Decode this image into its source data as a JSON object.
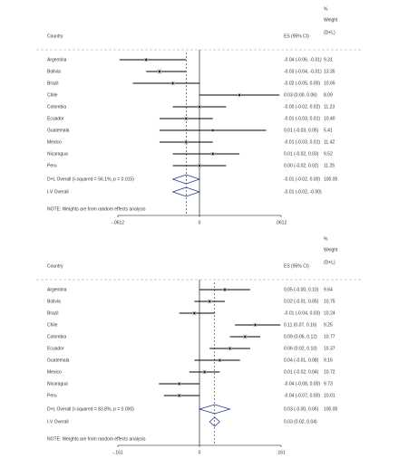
{
  "chart_data": [
    {
      "type": "forest",
      "headers": {
        "pct": "%",
        "weight": "Weight",
        "weight_sub": "(D+L)",
        "country": "Country",
        "es": "ES (95% CI)"
      },
      "studies": [
        {
          "label": "Argentina",
          "es": -0.04,
          "lo": -0.06,
          "hi": -0.01,
          "es_text": "-0.04 (-0.06, -0.01)",
          "weight": "9.31"
        },
        {
          "label": "Bolivia",
          "es": -0.03,
          "lo": -0.04,
          "hi": -0.01,
          "es_text": "-0.03 (-0.04, -0.01)",
          "weight": "13.35"
        },
        {
          "label": "Brazil",
          "es": -0.02,
          "lo": -0.05,
          "hi": 0.0,
          "es_text": "-0.02 (-0.05, 0.00)",
          "weight": "10.65"
        },
        {
          "label": "Chile",
          "es": 0.03,
          "lo": 0.0,
          "hi": 0.06,
          "es_text": "0.03 (0.00, 0.06)",
          "weight": "8.09"
        },
        {
          "label": "Colombia",
          "es": -0.0,
          "lo": -0.02,
          "hi": 0.02,
          "es_text": "-0.00 (-0.02, 0.02)",
          "weight": "11.23"
        },
        {
          "label": "Ecuador",
          "es": -0.01,
          "lo": -0.03,
          "hi": 0.01,
          "es_text": "-0.01 (-0.03, 0.01)",
          "weight": "10.40"
        },
        {
          "label": "Guatemala",
          "es": 0.01,
          "lo": -0.03,
          "hi": 0.05,
          "es_text": "0.01 (-0.03, 0.05)",
          "weight": "5.41"
        },
        {
          "label": "Mexico",
          "es": -0.01,
          "lo": -0.03,
          "hi": 0.01,
          "es_text": "-0.01 (-0.03, 0.01)",
          "weight": "11.42"
        },
        {
          "label": "Nicaragua",
          "es": 0.01,
          "lo": -0.02,
          "hi": 0.03,
          "es_text": "0.01 (-0.02, 0.03)",
          "weight": "9.52"
        },
        {
          "label": "Peru",
          "es": 0.0,
          "lo": -0.02,
          "hi": 0.02,
          "es_text": "0.00 (-0.02, 0.02)",
          "weight": "11.25"
        }
      ],
      "overall": [
        {
          "label": "D+L Overall (I-squared = 56.1%, p = 0.015)",
          "es": -0.01,
          "lo": -0.02,
          "hi": 0.0,
          "es_text": "-0.01 (-0.02, 0.00)",
          "weight": "100.00"
        },
        {
          "label": "I-V Overall",
          "es": -0.01,
          "lo": -0.02,
          "hi": -0.0,
          "es_text": "-0.01 (-0.02, -0.00)"
        }
      ],
      "note": "NOTE: Weights are from random effects analysis",
      "xlim": [
        -0.0612,
        0.0612
      ],
      "xticks": [
        {
          "value": -0.0612,
          "label": "-.0612"
        },
        0,
        {
          "value": 0.0612,
          "label": ".0612"
        }
      ]
    },
    {
      "type": "forest",
      "headers": {
        "pct": "%",
        "weight": "Weight",
        "weight_sub": "(D+L)",
        "country": "Country",
        "es": "ES (95% CI)"
      },
      "studies": [
        {
          "label": "Argentina",
          "es": 0.05,
          "lo": -0.0,
          "hi": 0.1,
          "es_text": "0.05 (-0.00, 0.10)",
          "weight": "9.64"
        },
        {
          "label": "Bolivia",
          "es": 0.02,
          "lo": -0.01,
          "hi": 0.05,
          "es_text": "0.02 (-0.01, 0.05)",
          "weight": "10.75"
        },
        {
          "label": "Brazil",
          "es": -0.01,
          "lo": -0.04,
          "hi": 0.03,
          "es_text": "-0.01 (-0.04, 0.03)",
          "weight": "10.24"
        },
        {
          "label": "Chile",
          "es": 0.11,
          "lo": 0.07,
          "hi": 0.16,
          "es_text": "0.11 (0.07, 0.16)",
          "weight": "9.25"
        },
        {
          "label": "Colombia",
          "es": 0.09,
          "lo": 0.06,
          "hi": 0.12,
          "es_text": "0.09 (0.06, 0.12)",
          "weight": "10.77"
        },
        {
          "label": "Ecuador",
          "es": 0.06,
          "lo": 0.02,
          "hi": 0.1,
          "es_text": "0.06 (0.02, 0.10)",
          "weight": "10.37"
        },
        {
          "label": "Guatemala",
          "es": 0.04,
          "lo": -0.01,
          "hi": 0.08,
          "es_text": "0.04 (-0.01, 0.08)",
          "weight": "9.16"
        },
        {
          "label": "Mexico",
          "es": 0.01,
          "lo": -0.02,
          "hi": 0.04,
          "es_text": "0.01 (-0.02, 0.04)",
          "weight": "10.72"
        },
        {
          "label": "Nicaragua",
          "es": -0.04,
          "lo": -0.08,
          "hi": 0.0,
          "es_text": "-0.04 (-0.08, 0.00)",
          "weight": "9.73"
        },
        {
          "label": "Peru",
          "es": -0.04,
          "lo": -0.07,
          "hi": 0.0,
          "es_text": "-0.04 (-0.07, 0.00)",
          "weight": "10.01"
        }
      ],
      "overall": [
        {
          "label": "D+L Overall (I-squared = 83.8%, p = 0.000)",
          "es": 0.03,
          "lo": -0.0,
          "hi": 0.06,
          "es_text": "0.03 (-0.00, 0.06)",
          "weight": "100.00"
        },
        {
          "label": "I-V Overall",
          "es": 0.03,
          "lo": 0.02,
          "hi": 0.04,
          "es_text": "0.03 (0.02, 0.04)"
        }
      ],
      "note": "NOTE: Weights are from random effects analysis",
      "xlim": [
        -0.161,
        0.161
      ],
      "xticks": [
        {
          "value": -0.161,
          "label": "-.161"
        },
        0,
        {
          "value": 0.161,
          "label": ".161"
        }
      ]
    }
  ]
}
